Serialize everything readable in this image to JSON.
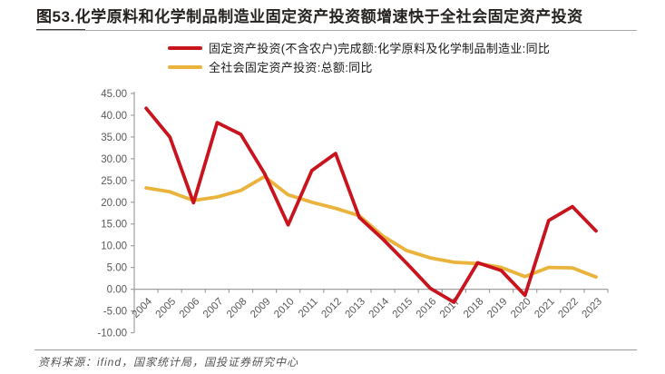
{
  "title": "图53.化学原料和化学制品制造业固定资产投资额增速快于全社会固定资产投资",
  "source": "资料来源：ifind，国家统计局，国投证券研究中心",
  "colors": {
    "red_series": "#C9141E",
    "gold_series": "#EAB33B",
    "axis": "#a0a0a0",
    "tick_label": "#595959"
  },
  "chart_data": {
    "type": "line",
    "title": "图53.化学原料和化学制品制造业固定资产投资额增速快于全社会固定资产投资",
    "categories": [
      "2004",
      "2005",
      "2006",
      "2007",
      "2008",
      "2009",
      "2010",
      "2011",
      "2012",
      "2013",
      "2014",
      "2015",
      "2016",
      "2017",
      "2018",
      "2019",
      "2020",
      "2021",
      "2022",
      "2023"
    ],
    "series": [
      {
        "name": "固定资产投资(不含农户)完成额:化学原料及化学制品制造业:同比",
        "color": "#C9141E",
        "values": [
          41.6,
          35.0,
          19.9,
          38.3,
          35.6,
          26.6,
          14.8,
          27.3,
          31.2,
          16.5,
          11.5,
          6.0,
          0.2,
          -3.0,
          6.1,
          4.3,
          -1.4,
          15.8,
          19.0,
          13.4
        ]
      },
      {
        "name": "全社会固定资产投资:总额:同比",
        "color": "#EAB33B",
        "values": [
          23.3,
          22.4,
          20.4,
          21.2,
          22.7,
          25.9,
          21.7,
          20.0,
          18.6,
          16.9,
          12.2,
          8.9,
          7.2,
          6.2,
          5.9,
          5.0,
          2.9,
          5.0,
          4.9,
          2.8
        ]
      }
    ],
    "xlabel": "",
    "ylabel": "",
    "ylim": [
      -10,
      45
    ],
    "ytick_step": 5,
    "ytick_format_decimals": 2,
    "grid": false,
    "legend_position": "top-left"
  }
}
